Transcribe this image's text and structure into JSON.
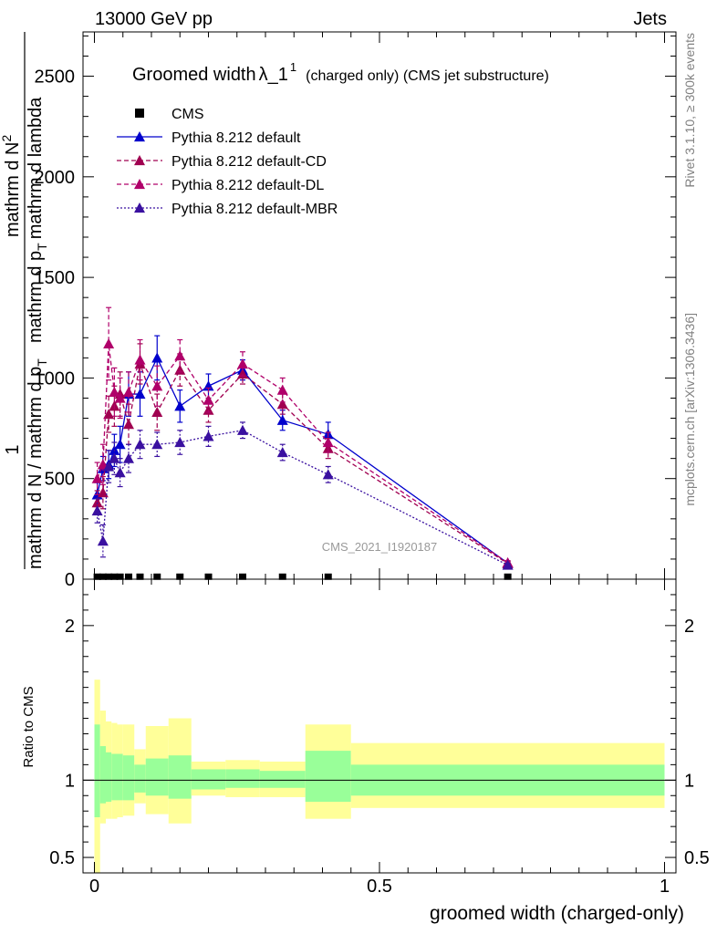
{
  "header": {
    "left": "13000 GeV pp",
    "right": "Jets"
  },
  "title_main": "Groomed width",
  "title_sym": "λ_1",
  "title_sup": "1",
  "title_rest": "(charged only) (CMS jet substructure)",
  "side_right_top": "Rivet 3.1.10, ≥ 300k events",
  "side_right_bottom": "mcplots.cern.ch [arXiv:1306.3436]",
  "watermark": "CMS_2021_I1920187",
  "ylabel_main": {
    "one": "1",
    "part1": "mathrm d N / mathrm d p",
    "part1_sub": "T",
    "part2": "mathrm d N",
    "part2_sup": "2",
    "part3": "mathrm d p",
    "part3_sub": "T",
    "part4": "mathrm d lambda"
  },
  "ylabel_ratio": "Ratio to CMS",
  "xlabel": "groomed width (charged-only)",
  "colors": {
    "default": "#0000cc",
    "cd": "#a00050",
    "dl": "#b0006a",
    "mbr": "#3a10a0",
    "band_inner": "#99ff99",
    "band_outer": "#ffff99"
  },
  "chart_data": {
    "type": "line",
    "x_range": [
      -0.02,
      1.02
    ],
    "main_ylim": [
      0,
      2720
    ],
    "ratio_ylim": [
      0.4,
      2.3
    ],
    "main_y_ticks": [
      0,
      500,
      1000,
      1500,
      2000,
      2500
    ],
    "main_y_tick_labels": [
      "0",
      "500",
      "1000",
      "1500",
      "2000",
      "2500"
    ],
    "ratio_y_ticks": [
      0.5,
      1,
      2
    ],
    "ratio_y_tick_labels": [
      "0.5",
      "1",
      "2"
    ],
    "x_ticks": [
      0,
      0.5,
      1
    ],
    "x_tick_labels": [
      "0",
      "0.5",
      "1"
    ],
    "legend": [
      {
        "key": "cms",
        "label": "CMS",
        "style": "marker"
      },
      {
        "key": "default",
        "label": "Pythia 8.212 default",
        "style": "solid"
      },
      {
        "key": "cd",
        "label": "Pythia 8.212 default-CD",
        "style": "dashed"
      },
      {
        "key": "dl",
        "label": "Pythia 8.212 default-DL",
        "style": "dashed"
      },
      {
        "key": "mbr",
        "label": "Pythia 8.212 default-MBR",
        "style": "dotted"
      }
    ],
    "cms": {
      "x": [
        0.005,
        0.015,
        0.025,
        0.035,
        0.045,
        0.06,
        0.08,
        0.11,
        0.15,
        0.2,
        0.26,
        0.33,
        0.41,
        0.725
      ],
      "y": [
        1,
        1,
        1,
        1,
        1,
        1,
        1,
        1,
        1,
        1,
        1,
        1,
        1,
        1
      ]
    },
    "series": [
      {
        "key": "default",
        "name": "Pythia 8.212 default",
        "x": [
          0.005,
          0.015,
          0.025,
          0.035,
          0.045,
          0.06,
          0.08,
          0.11,
          0.15,
          0.2,
          0.26,
          0.33,
          0.41,
          0.725
        ],
        "y": [
          420,
          550,
          570,
          640,
          670,
          920,
          920,
          1100,
          860,
          960,
          1040,
          790,
          720,
          80
        ],
        "err": [
          60,
          60,
          70,
          80,
          90,
          110,
          110,
          110,
          80,
          60,
          50,
          50,
          60,
          10
        ]
      },
      {
        "key": "cd",
        "name": "Pythia 8.212 default-CD",
        "x": [
          0.005,
          0.015,
          0.025,
          0.035,
          0.045,
          0.06,
          0.08,
          0.11,
          0.15,
          0.2,
          0.26,
          0.33,
          0.41,
          0.725
        ],
        "y": [
          380,
          430,
          820,
          860,
          920,
          770,
          1070,
          830,
          1040,
          840,
          1020,
          870,
          650,
          78
        ],
        "err": [
          60,
          80,
          90,
          100,
          110,
          100,
          100,
          90,
          80,
          60,
          50,
          50,
          50,
          10
        ]
      },
      {
        "key": "dl",
        "name": "Pythia 8.212 default-DL",
        "x": [
          0.005,
          0.015,
          0.025,
          0.035,
          0.045,
          0.06,
          0.08,
          0.11,
          0.15,
          0.2,
          0.26,
          0.33,
          0.41,
          0.725
        ],
        "y": [
          500,
          570,
          1170,
          930,
          900,
          930,
          1090,
          960,
          1110,
          890,
          1070,
          940,
          680,
          82
        ],
        "err": [
          80,
          100,
          180,
          120,
          100,
          100,
          100,
          100,
          80,
          60,
          60,
          60,
          50,
          10
        ]
      },
      {
        "key": "mbr",
        "name": "Pythia 8.212 default-MBR",
        "x": [
          0.005,
          0.015,
          0.025,
          0.035,
          0.045,
          0.06,
          0.08,
          0.11,
          0.15,
          0.2,
          0.26,
          0.33,
          0.41,
          0.725
        ],
        "y": [
          340,
          190,
          560,
          600,
          530,
          600,
          670,
          670,
          680,
          710,
          740,
          630,
          520,
          70
        ],
        "err": [
          60,
          80,
          80,
          80,
          70,
          70,
          70,
          60,
          60,
          50,
          40,
          40,
          40,
          8
        ]
      }
    ],
    "ratio_bands": [
      {
        "x0": 0.0,
        "x1": 0.01,
        "in_lo": 0.76,
        "in_hi": 1.36,
        "out_lo": 0.38,
        "out_hi": 1.65
      },
      {
        "x0": 0.01,
        "x1": 0.02,
        "in_lo": 0.85,
        "in_hi": 1.22,
        "out_lo": 0.72,
        "out_hi": 1.45
      },
      {
        "x0": 0.02,
        "x1": 0.03,
        "in_lo": 0.86,
        "in_hi": 1.18,
        "out_lo": 0.75,
        "out_hi": 1.38
      },
      {
        "x0": 0.03,
        "x1": 0.04,
        "in_lo": 0.87,
        "in_hi": 1.17,
        "out_lo": 0.75,
        "out_hi": 1.37
      },
      {
        "x0": 0.04,
        "x1": 0.05,
        "in_lo": 0.87,
        "in_hi": 1.17,
        "out_lo": 0.76,
        "out_hi": 1.36
      },
      {
        "x0": 0.05,
        "x1": 0.07,
        "in_lo": 0.87,
        "in_hi": 1.16,
        "out_lo": 0.77,
        "out_hi": 1.36
      },
      {
        "x0": 0.07,
        "x1": 0.09,
        "in_lo": 0.92,
        "in_hi": 1.1,
        "out_lo": 0.85,
        "out_hi": 1.2
      },
      {
        "x0": 0.09,
        "x1": 0.13,
        "in_lo": 0.9,
        "in_hi": 1.14,
        "out_lo": 0.78,
        "out_hi": 1.35
      },
      {
        "x0": 0.13,
        "x1": 0.17,
        "in_lo": 0.88,
        "in_hi": 1.16,
        "out_lo": 0.72,
        "out_hi": 1.4
      },
      {
        "x0": 0.17,
        "x1": 0.23,
        "in_lo": 0.94,
        "in_hi": 1.07,
        "out_lo": 0.9,
        "out_hi": 1.12
      },
      {
        "x0": 0.23,
        "x1": 0.29,
        "in_lo": 0.95,
        "in_hi": 1.07,
        "out_lo": 0.89,
        "out_hi": 1.13
      },
      {
        "x0": 0.29,
        "x1": 0.37,
        "in_lo": 0.95,
        "in_hi": 1.06,
        "out_lo": 0.89,
        "out_hi": 1.12
      },
      {
        "x0": 0.37,
        "x1": 0.45,
        "in_lo": 0.86,
        "in_hi": 1.19,
        "out_lo": 0.75,
        "out_hi": 1.36
      },
      {
        "x0": 0.45,
        "x1": 1.0,
        "in_lo": 0.9,
        "in_hi": 1.1,
        "out_lo": 0.82,
        "out_hi": 1.24
      }
    ]
  }
}
